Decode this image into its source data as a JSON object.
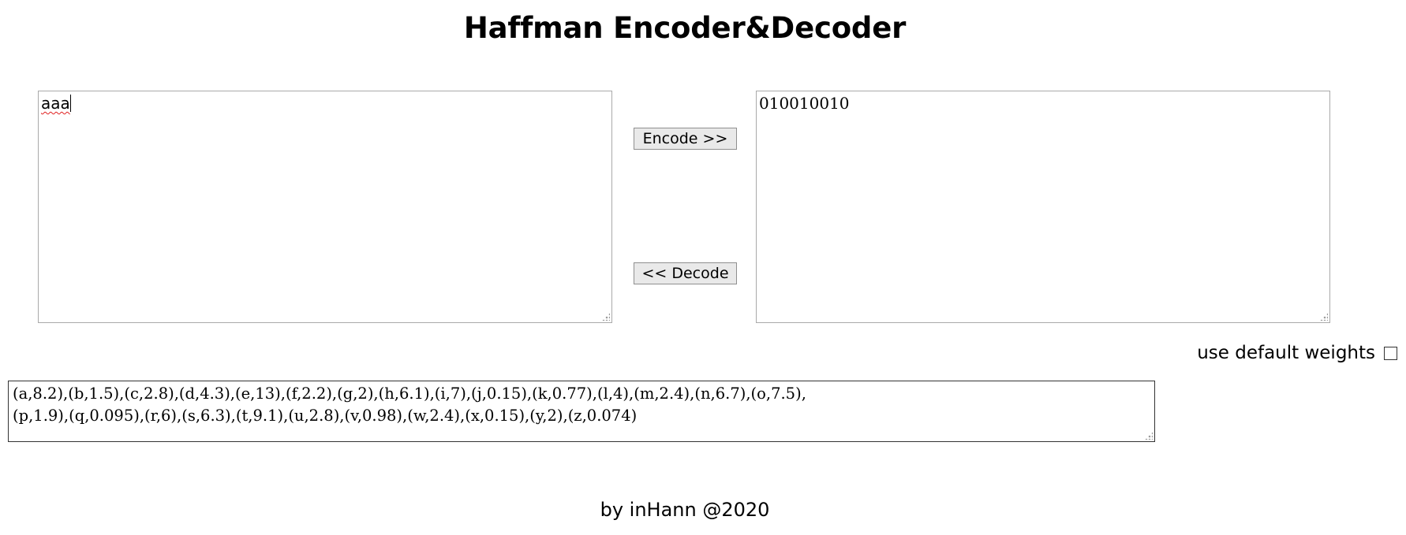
{
  "title": "Haffman Encoder&Decoder",
  "input": {
    "value": "aaa"
  },
  "output": {
    "value": "010010010"
  },
  "buttons": {
    "encode_label": "Encode >>",
    "decode_label": "<< Decode"
  },
  "default_weights": {
    "label": "use default weights",
    "checked": false
  },
  "weights": {
    "value": "(a,8.2),(b,1.5),(c,2.8),(d,4.3),(e,13),(f,2.2),(g,2),(h,6.1),(i,7),(j,0.15),(k,0.77),(l,4),(m,2.4),(n,6.7),(o,7.5),\n(p,1.9),(q,0.095),(r,6),(s,6.3),(t,9.1),(u,2.8),(v,0.98),(w,2.4),(x,0.15),(y,2),(z,0.074)"
  },
  "footer": "by inHann @2020"
}
